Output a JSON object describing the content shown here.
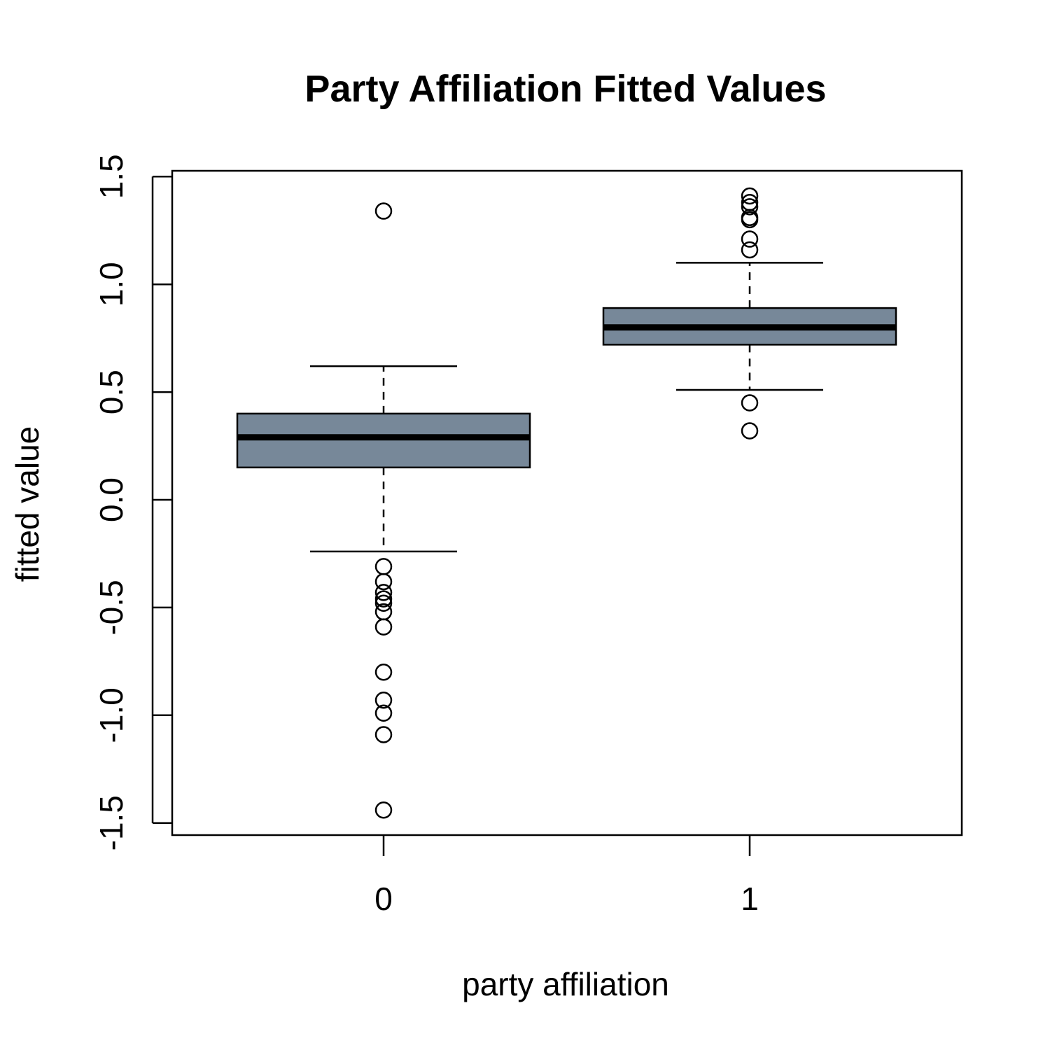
{
  "chart_data": {
    "type": "boxplot",
    "title": "Party Affiliation Fitted Values",
    "xlabel": "party affiliation",
    "ylabel": "fitted value",
    "categories": [
      "0",
      "1"
    ],
    "ylim": [
      -1.55,
      1.53
    ],
    "yticks": [
      -1.5,
      -1.0,
      -0.5,
      0.0,
      0.5,
      1.0,
      1.5
    ],
    "ytick_labels": [
      "-1.5",
      "-1.0",
      "-0.5",
      "0.0",
      "0.5",
      "1.0",
      "1.5"
    ],
    "box_color": "#778899",
    "grid": false,
    "boxes": [
      {
        "category": "0",
        "whisker_low": -0.24,
        "q1": 0.15,
        "median": 0.29,
        "q3": 0.4,
        "whisker_high": 0.62,
        "outliers": [
          1.34,
          -0.31,
          -0.38,
          -0.43,
          -0.46,
          -0.48,
          -0.52,
          -0.59,
          -0.8,
          -0.93,
          -0.99,
          -1.09,
          -1.44
        ]
      },
      {
        "category": "1",
        "whisker_low": 0.51,
        "q1": 0.72,
        "median": 0.8,
        "q3": 0.89,
        "whisker_high": 1.1,
        "outliers": [
          1.41,
          1.38,
          1.36,
          1.31,
          1.3,
          1.21,
          1.16,
          0.45,
          0.32
        ]
      }
    ]
  }
}
